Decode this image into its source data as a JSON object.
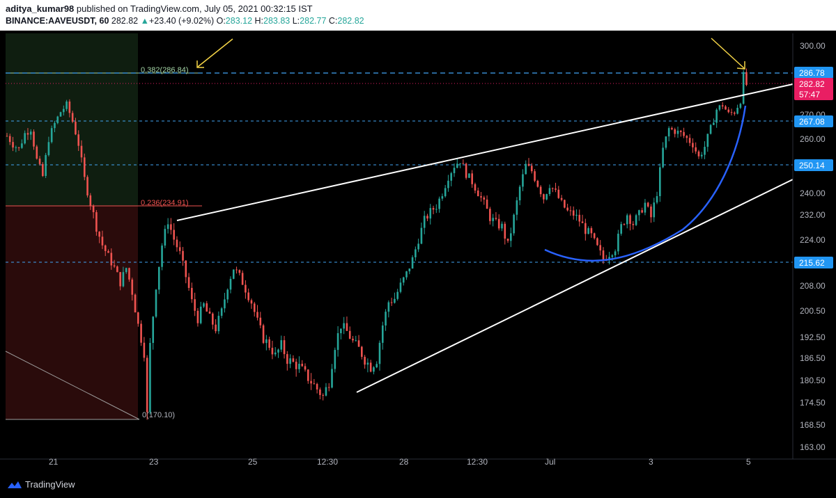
{
  "header": {
    "user": "aditya_kumar98",
    "published": "published on TradingView.com, July 05, 2021 00:32:15 IST",
    "symbol": "BINANCE:AAVEUSDT, 60",
    "last": "282.82",
    "change_arrow": "▲",
    "change": "+23.40 (+9.02%)",
    "o_label": "O:",
    "o": "283.12",
    "h_label": "H:",
    "h": "283.83",
    "l_label": "L:",
    "l": "282.77",
    "c_label": "C:",
    "c": "282.82"
  },
  "footer": {
    "brand": "TradingView",
    "logo_icon": "tradingview-logo-icon"
  },
  "colors": {
    "up": "#26a69a",
    "down": "#ef5350",
    "hline": "#2196f3",
    "price_badge": "#e91e63",
    "arrow": "#f5d547",
    "curve": "#2962ff",
    "fib_382": "#a5d6a7",
    "fib_236": "#ef5350"
  },
  "chart_data": {
    "type": "candlestick",
    "symbol": "BINANCE:AAVEUSDT",
    "timeframe": "60",
    "x_ticks": [
      "21",
      "23",
      "25",
      "12:30",
      "28",
      "12:30",
      "Jul",
      "3",
      "5"
    ],
    "y_ticks": [
      "300.00",
      "270.00",
      "260.00",
      "240.00",
      "232.00",
      "224.00",
      "208.00",
      "200.50",
      "192.50",
      "186.50",
      "180.50",
      "174.50",
      "168.50",
      "163.00"
    ],
    "horizontal_levels": [
      286.78,
      267.08,
      250.14,
      215.62
    ],
    "horizontal_level_labels": [
      "286.78",
      "267.08",
      "250.14",
      "215.62"
    ],
    "last_price_label": "282.82",
    "countdown_label": "57:47",
    "fibonacci": [
      {
        "label": "0.382(286.84)",
        "value": 286.84
      },
      {
        "label": "0.236(234.91)",
        "value": 234.91
      },
      {
        "label": "0(170.10)",
        "value": 170.1
      }
    ],
    "trendlines": [
      {
        "name": "upper-wedge",
        "from": [
          "23",
          230.5
        ],
        "to": [
          "5",
          283.5
        ]
      },
      {
        "name": "lower-wedge",
        "from": [
          "12:30",
          177.5
        ],
        "to": [
          "5",
          246.0
        ]
      }
    ],
    "candle_path_points": [
      [
        0,
        261
      ],
      [
        2,
        258
      ],
      [
        4,
        256
      ],
      [
        6,
        262
      ],
      [
        8,
        264
      ],
      [
        10,
        252
      ],
      [
        12,
        246
      ],
      [
        14,
        260
      ],
      [
        16,
        266
      ],
      [
        18,
        271
      ],
      [
        20,
        274
      ],
      [
        22,
        267
      ],
      [
        24,
        258
      ],
      [
        26,
        245
      ],
      [
        28,
        236
      ],
      [
        30,
        228
      ],
      [
        32,
        222
      ],
      [
        34,
        218
      ],
      [
        36,
        214
      ],
      [
        38,
        209
      ],
      [
        40,
        214
      ],
      [
        42,
        206
      ],
      [
        44,
        196
      ],
      [
        46,
        188
      ],
      [
        47,
        171
      ],
      [
        48,
        190
      ],
      [
        50,
        208
      ],
      [
        52,
        222
      ],
      [
        54,
        230
      ],
      [
        56,
        224
      ],
      [
        58,
        219
      ],
      [
        60,
        211
      ],
      [
        62,
        203
      ],
      [
        64,
        198
      ],
      [
        66,
        202
      ],
      [
        68,
        198
      ],
      [
        70,
        195
      ],
      [
        72,
        200
      ],
      [
        74,
        208
      ],
      [
        76,
        214
      ],
      [
        78,
        211
      ],
      [
        80,
        207
      ],
      [
        82,
        203
      ],
      [
        84,
        197
      ],
      [
        86,
        192
      ],
      [
        88,
        190
      ],
      [
        90,
        187
      ],
      [
        92,
        190
      ],
      [
        94,
        186
      ],
      [
        96,
        185
      ],
      [
        98,
        184
      ],
      [
        100,
        182
      ],
      [
        102,
        180
      ],
      [
        104,
        178
      ],
      [
        106,
        176
      ],
      [
        108,
        180
      ],
      [
        110,
        190
      ],
      [
        112,
        196
      ],
      [
        114,
        194
      ],
      [
        116,
        191
      ],
      [
        118,
        189
      ],
      [
        120,
        186
      ],
      [
        122,
        184
      ],
      [
        124,
        186
      ],
      [
        126,
        196
      ],
      [
        128,
        203
      ],
      [
        130,
        204
      ],
      [
        132,
        208
      ],
      [
        134,
        212
      ],
      [
        136,
        217
      ],
      [
        138,
        224
      ],
      [
        140,
        230
      ],
      [
        142,
        233
      ],
      [
        144,
        235
      ],
      [
        146,
        240
      ],
      [
        148,
        246
      ],
      [
        150,
        250
      ],
      [
        152,
        252
      ],
      [
        154,
        247
      ],
      [
        156,
        244
      ],
      [
        158,
        240
      ],
      [
        160,
        236
      ],
      [
        162,
        231
      ],
      [
        164,
        229
      ],
      [
        166,
        228
      ],
      [
        168,
        222
      ],
      [
        170,
        231
      ],
      [
        172,
        242
      ],
      [
        174,
        250
      ],
      [
        176,
        248
      ],
      [
        178,
        243
      ],
      [
        180,
        238
      ],
      [
        182,
        243
      ],
      [
        184,
        240
      ],
      [
        186,
        236
      ],
      [
        188,
        233
      ],
      [
        190,
        232
      ],
      [
        192,
        230
      ],
      [
        194,
        227
      ],
      [
        196,
        225
      ],
      [
        198,
        221
      ],
      [
        200,
        217
      ],
      [
        202,
        219
      ],
      [
        204,
        221
      ],
      [
        206,
        228
      ],
      [
        208,
        232
      ],
      [
        210,
        229
      ],
      [
        212,
        232
      ],
      [
        214,
        236
      ],
      [
        216,
        231
      ],
      [
        218,
        240
      ],
      [
        220,
        256
      ],
      [
        222,
        264
      ],
      [
        224,
        263
      ],
      [
        226,
        262
      ],
      [
        228,
        260
      ],
      [
        230,
        258
      ],
      [
        232,
        253
      ],
      [
        234,
        257
      ],
      [
        236,
        264
      ],
      [
        238,
        272
      ],
      [
        240,
        274
      ],
      [
        242,
        270
      ],
      [
        244,
        271
      ],
      [
        246,
        276
      ],
      [
        247,
        286.8
      ],
      [
        248,
        282.8
      ]
    ]
  }
}
